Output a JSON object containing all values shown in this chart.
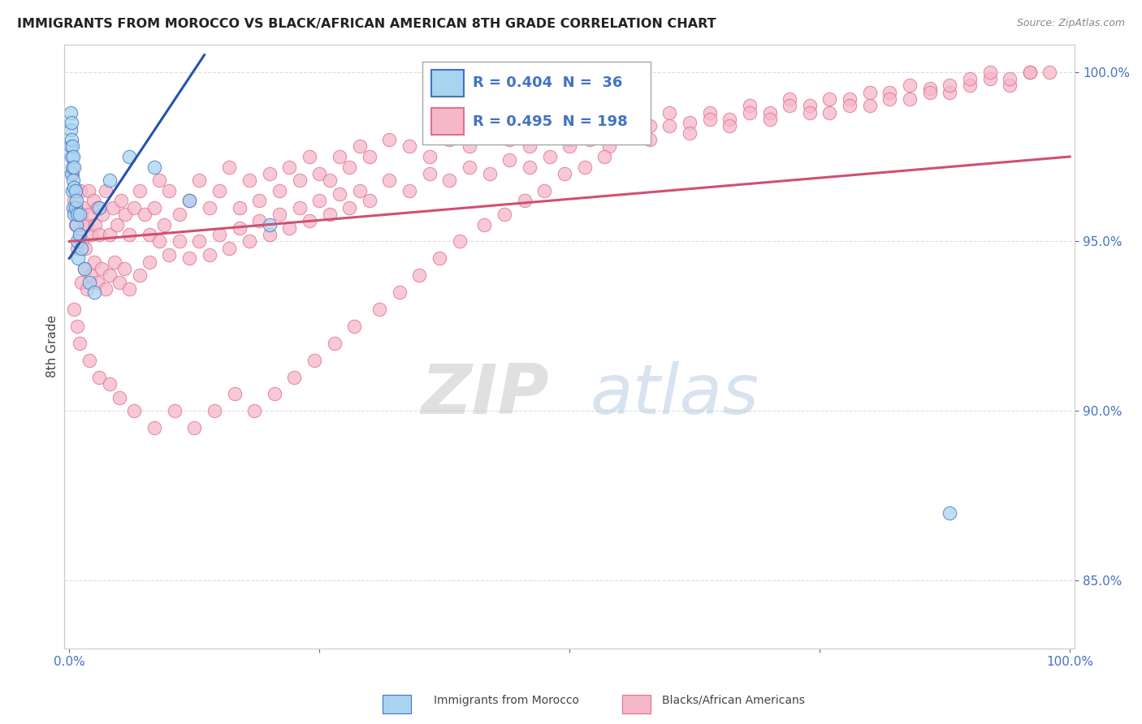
{
  "title": "IMMIGRANTS FROM MOROCCO VS BLACK/AFRICAN AMERICAN 8TH GRADE CORRELATION CHART",
  "source": "Source: ZipAtlas.com",
  "ylabel": "8th Grade",
  "ylabel_right_ticks": [
    100.0,
    95.0,
    90.0,
    85.0
  ],
  "ylim": [
    0.83,
    1.008
  ],
  "xlim": [
    -0.005,
    1.005
  ],
  "legend_blue_R": "0.404",
  "legend_blue_N": "36",
  "legend_pink_R": "0.495",
  "legend_pink_N": "198",
  "blue_fill": "#a8d4f0",
  "pink_fill": "#f5b8c8",
  "blue_edge": "#4472c4",
  "pink_edge": "#e07090",
  "blue_line_color": "#2255aa",
  "pink_line_color": "#d05070",
  "title_color": "#222222",
  "source_color": "#888888",
  "legend_text_color": "#4472c4",
  "grid_color": "#dddddd",
  "background_color": "#ffffff",
  "blue_scatter_x": [
    0.001,
    0.001,
    0.001,
    0.002,
    0.002,
    0.002,
    0.002,
    0.003,
    0.003,
    0.003,
    0.004,
    0.004,
    0.004,
    0.005,
    0.005,
    0.005,
    0.006,
    0.006,
    0.007,
    0.007,
    0.008,
    0.008,
    0.009,
    0.01,
    0.01,
    0.012,
    0.015,
    0.02,
    0.025,
    0.03,
    0.04,
    0.06,
    0.085,
    0.12,
    0.2,
    0.88
  ],
  "blue_scatter_y": [
    0.988,
    0.983,
    0.978,
    0.985,
    0.98,
    0.975,
    0.97,
    0.978,
    0.972,
    0.965,
    0.975,
    0.968,
    0.96,
    0.972,
    0.966,
    0.958,
    0.965,
    0.96,
    0.962,
    0.955,
    0.958,
    0.95,
    0.945,
    0.958,
    0.952,
    0.948,
    0.942,
    0.938,
    0.935,
    0.96,
    0.968,
    0.975,
    0.972,
    0.962,
    0.955,
    0.87
  ],
  "pink_scatter_x": [
    0.003,
    0.005,
    0.006,
    0.007,
    0.008,
    0.009,
    0.01,
    0.011,
    0.012,
    0.013,
    0.014,
    0.015,
    0.016,
    0.018,
    0.019,
    0.02,
    0.022,
    0.024,
    0.026,
    0.028,
    0.03,
    0.033,
    0.036,
    0.04,
    0.044,
    0.048,
    0.052,
    0.056,
    0.06,
    0.065,
    0.07,
    0.075,
    0.08,
    0.085,
    0.09,
    0.095,
    0.1,
    0.11,
    0.12,
    0.13,
    0.14,
    0.15,
    0.16,
    0.17,
    0.18,
    0.19,
    0.2,
    0.21,
    0.22,
    0.23,
    0.24,
    0.25,
    0.26,
    0.27,
    0.28,
    0.29,
    0.3,
    0.32,
    0.34,
    0.36,
    0.38,
    0.4,
    0.42,
    0.44,
    0.46,
    0.48,
    0.5,
    0.52,
    0.54,
    0.56,
    0.58,
    0.6,
    0.62,
    0.64,
    0.66,
    0.68,
    0.7,
    0.72,
    0.74,
    0.76,
    0.78,
    0.8,
    0.82,
    0.84,
    0.86,
    0.88,
    0.9,
    0.92,
    0.94,
    0.96,
    0.012,
    0.015,
    0.018,
    0.022,
    0.025,
    0.028,
    0.032,
    0.036,
    0.04,
    0.045,
    0.05,
    0.055,
    0.06,
    0.07,
    0.08,
    0.09,
    0.1,
    0.11,
    0.12,
    0.13,
    0.14,
    0.15,
    0.16,
    0.17,
    0.18,
    0.19,
    0.2,
    0.21,
    0.22,
    0.23,
    0.24,
    0.25,
    0.26,
    0.27,
    0.28,
    0.29,
    0.3,
    0.32,
    0.34,
    0.36,
    0.38,
    0.4,
    0.42,
    0.44,
    0.46,
    0.48,
    0.5,
    0.52,
    0.54,
    0.56,
    0.58,
    0.6,
    0.62,
    0.64,
    0.66,
    0.68,
    0.7,
    0.72,
    0.74,
    0.76,
    0.78,
    0.8,
    0.82,
    0.84,
    0.86,
    0.88,
    0.9,
    0.92,
    0.94,
    0.96,
    0.98,
    0.005,
    0.008,
    0.01,
    0.02,
    0.03,
    0.04,
    0.05,
    0.065,
    0.085,
    0.105,
    0.125,
    0.145,
    0.165,
    0.185,
    0.205,
    0.225,
    0.245,
    0.265,
    0.285,
    0.31,
    0.33,
    0.35,
    0.37,
    0.39,
    0.415,
    0.435,
    0.455,
    0.475,
    0.495,
    0.515,
    0.535
  ],
  "pink_scatter_y": [
    0.97,
    0.962,
    0.955,
    0.96,
    0.948,
    0.958,
    0.952,
    0.965,
    0.958,
    0.95,
    0.96,
    0.955,
    0.948,
    0.955,
    0.965,
    0.958,
    0.952,
    0.962,
    0.955,
    0.96,
    0.952,
    0.958,
    0.965,
    0.952,
    0.96,
    0.955,
    0.962,
    0.958,
    0.952,
    0.96,
    0.965,
    0.958,
    0.952,
    0.96,
    0.968,
    0.955,
    0.965,
    0.958,
    0.962,
    0.968,
    0.96,
    0.965,
    0.972,
    0.96,
    0.968,
    0.962,
    0.97,
    0.965,
    0.972,
    0.968,
    0.975,
    0.97,
    0.968,
    0.975,
    0.972,
    0.978,
    0.975,
    0.98,
    0.978,
    0.975,
    0.98,
    0.978,
    0.982,
    0.98,
    0.978,
    0.982,
    0.98,
    0.984,
    0.982,
    0.985,
    0.984,
    0.988,
    0.985,
    0.988,
    0.986,
    0.99,
    0.988,
    0.992,
    0.99,
    0.988,
    0.992,
    0.99,
    0.994,
    0.992,
    0.995,
    0.994,
    0.996,
    0.998,
    0.996,
    1.0,
    0.938,
    0.942,
    0.936,
    0.94,
    0.944,
    0.938,
    0.942,
    0.936,
    0.94,
    0.944,
    0.938,
    0.942,
    0.936,
    0.94,
    0.944,
    0.95,
    0.946,
    0.95,
    0.945,
    0.95,
    0.946,
    0.952,
    0.948,
    0.954,
    0.95,
    0.956,
    0.952,
    0.958,
    0.954,
    0.96,
    0.956,
    0.962,
    0.958,
    0.964,
    0.96,
    0.965,
    0.962,
    0.968,
    0.965,
    0.97,
    0.968,
    0.972,
    0.97,
    0.974,
    0.972,
    0.975,
    0.978,
    0.98,
    0.978,
    0.982,
    0.98,
    0.984,
    0.982,
    0.986,
    0.984,
    0.988,
    0.986,
    0.99,
    0.988,
    0.992,
    0.99,
    0.994,
    0.992,
    0.996,
    0.994,
    0.996,
    0.998,
    1.0,
    0.998,
    1.0,
    1.0,
    0.93,
    0.925,
    0.92,
    0.915,
    0.91,
    0.908,
    0.904,
    0.9,
    0.895,
    0.9,
    0.895,
    0.9,
    0.905,
    0.9,
    0.905,
    0.91,
    0.915,
    0.92,
    0.925,
    0.93,
    0.935,
    0.94,
    0.945,
    0.95,
    0.955,
    0.958,
    0.962,
    0.965,
    0.97,
    0.972,
    0.975
  ]
}
